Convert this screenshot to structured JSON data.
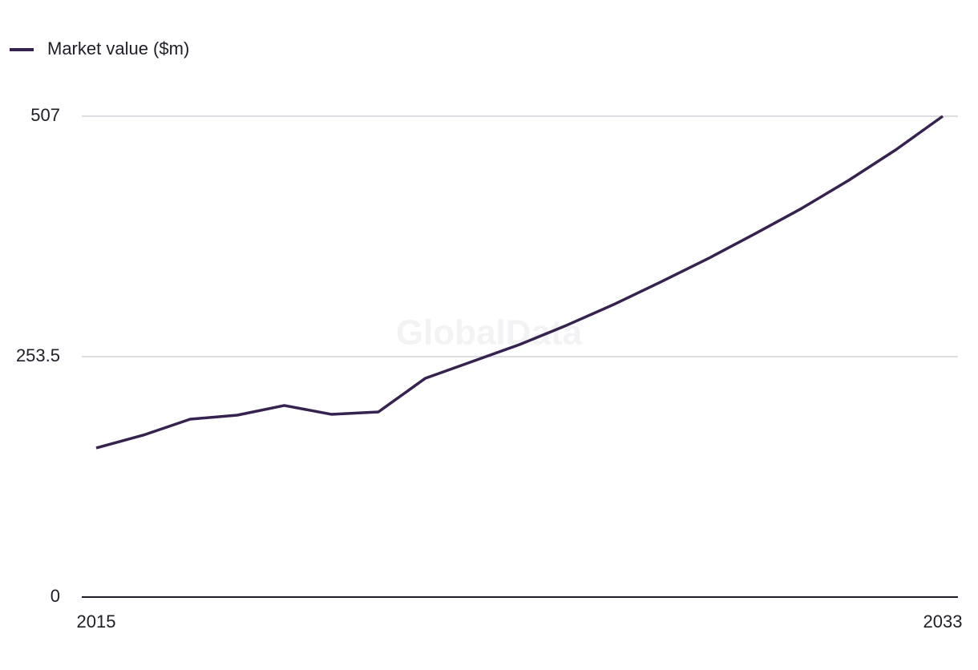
{
  "chart_data": {
    "type": "line",
    "legend": "top-left",
    "watermark": "GlobalData",
    "x": [
      2015,
      2016,
      2017,
      2018,
      2019,
      2020,
      2021,
      2022,
      2023,
      2024,
      2025,
      2026,
      2027,
      2028,
      2029,
      2030,
      2031,
      2032,
      2033
    ],
    "xlim": [
      2015,
      2033
    ],
    "xticks": [
      2015,
      2033
    ],
    "ylim": [
      0,
      507
    ],
    "yticks": [
      0,
      253.5,
      507
    ],
    "grid": true,
    "series": [
      {
        "name": "Market value ($m)",
        "color": "#35224f",
        "values": [
          157.2,
          170.7,
          187.6,
          191.8,
          202.0,
          192.7,
          195.2,
          230.7,
          248.4,
          266.2,
          286.5,
          308.4,
          332.1,
          356.6,
          382.8,
          409.8,
          439.4,
          471.5,
          507
        ]
      }
    ]
  }
}
